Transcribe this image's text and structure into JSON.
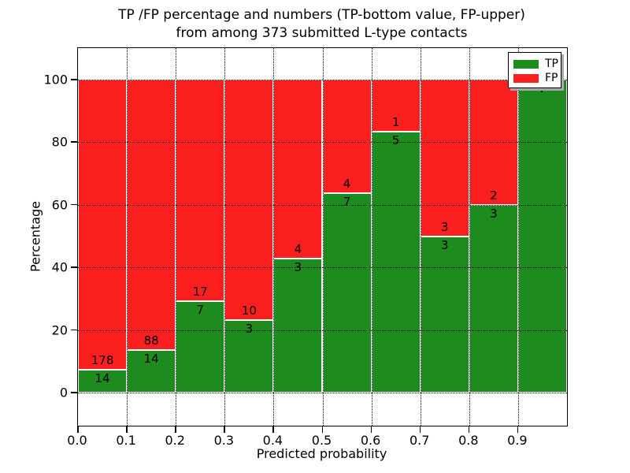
{
  "title": {
    "line1": "TP /FP percentage and numbers (TP-bottom value, FP-upper)",
    "line2": "from among 373 submitted L-type contacts"
  },
  "axes": {
    "x_label": "Predicted probability",
    "y_label": "Percentage",
    "x_tick_labels": [
      "0.0",
      "0.1",
      "0.2",
      "0.3",
      "0.4",
      "0.5",
      "0.6",
      "0.7",
      "0.8",
      "0.9"
    ],
    "y_tick_labels": [
      "0",
      "20",
      "40",
      "60",
      "80",
      "100"
    ],
    "y_tick_values": [
      0,
      20,
      40,
      60,
      80,
      100
    ],
    "grid": "dotted"
  },
  "legend": {
    "items": [
      {
        "label": "TP",
        "color": "#1e8b1e"
      },
      {
        "label": "FP",
        "color": "#fb1f1f"
      }
    ],
    "position": "upper right"
  },
  "colors": {
    "tp": "#1e8b1e",
    "fp": "#fb1f1f",
    "bar_edge": "#ffffff"
  },
  "chart_data": {
    "type": "bar",
    "stacked": true,
    "normalized_to_percent": true,
    "title": "TP /FP percentage and numbers (TP-bottom value, FP-upper) from among 373 submitted L-type contacts",
    "xlabel": "Predicted probability",
    "ylabel": "Percentage",
    "total_contacts": 373,
    "bin_edges": [
      0.0,
      0.1,
      0.2,
      0.3,
      0.4,
      0.5,
      0.6,
      0.7,
      0.8,
      0.9,
      1.0
    ],
    "categories": [
      "0.0-0.1",
      "0.1-0.2",
      "0.2-0.3",
      "0.3-0.4",
      "0.4-0.5",
      "0.5-0.6",
      "0.6-0.7",
      "0.7-0.8",
      "0.8-0.9",
      "0.9-1.0"
    ],
    "series": [
      {
        "name": "TP",
        "values": [
          14,
          14,
          7,
          3,
          3,
          7,
          5,
          3,
          3,
          7
        ]
      },
      {
        "name": "FP",
        "values": [
          178,
          88,
          17,
          10,
          4,
          4,
          1,
          3,
          2,
          0
        ]
      }
    ],
    "tp_percent": [
      7.29,
      13.73,
      29.17,
      23.08,
      42.86,
      63.64,
      83.33,
      50.0,
      60.0,
      100.0
    ],
    "ylim_percent": [
      0,
      100
    ],
    "xlim": [
      0.0,
      1.0
    ]
  }
}
